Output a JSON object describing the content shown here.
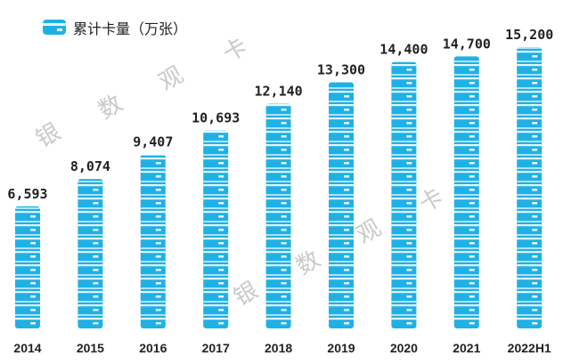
{
  "chart_data": {
    "type": "bar",
    "legend": {
      "label": "累计卡量（万张）",
      "placement": "top-left"
    },
    "categories": [
      "2014",
      "2015",
      "2016",
      "2017",
      "2018",
      "2019",
      "2020",
      "2021",
      "2022H1"
    ],
    "value_labels": [
      "6,593",
      "8,074",
      "9,407",
      "10,693",
      "12,140",
      "13,300",
      "14,400",
      "14,700",
      "15,200"
    ],
    "series": [
      {
        "name": "累计卡量（万张）",
        "values": [
          6593,
          8074,
          9407,
          10693,
          12140,
          13300,
          14400,
          14700,
          15200
        ]
      }
    ],
    "ylim": [
      0,
      15200
    ],
    "grid": false,
    "colors": {
      "bar": "#1fb1e6",
      "card_light": "#e9f7fc",
      "label": "#222222"
    }
  },
  "watermark": {
    "text": [
      "银",
      "数",
      "观",
      "卡"
    ]
  }
}
